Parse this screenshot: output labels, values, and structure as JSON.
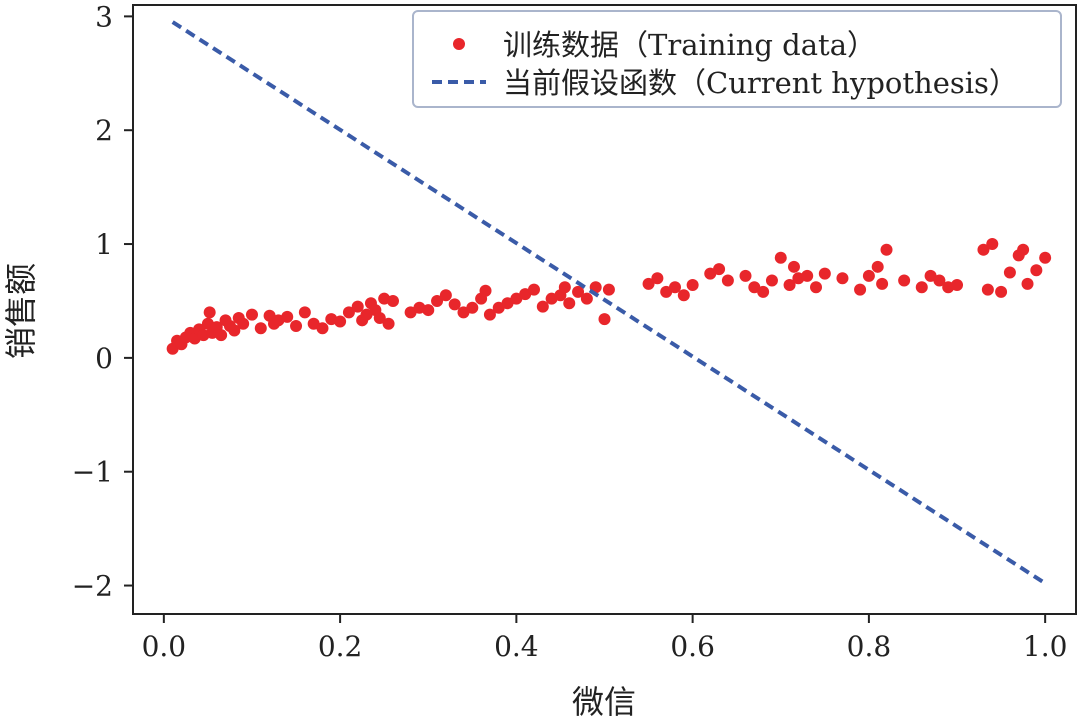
{
  "chart_data": {
    "type": "scatter",
    "title": "",
    "xlabel": "微信",
    "ylabel": "销售额",
    "xlim": [
      -0.035,
      1.035
    ],
    "ylim": [
      -2.25,
      3.1
    ],
    "xticks": [
      0.0,
      0.2,
      0.4,
      0.6,
      0.8,
      1.0
    ],
    "xtick_labels": [
      "0.0",
      "0.2",
      "0.4",
      "0.6",
      "0.8",
      "1.0"
    ],
    "yticks": [
      -2,
      -1,
      0,
      1,
      2,
      3
    ],
    "ytick_labels": [
      "−2",
      "−1",
      "0",
      "1",
      "2",
      "3"
    ],
    "grid": false,
    "legend_position": "top-right",
    "colors": {
      "points": "#e8262b",
      "line": "#3a5ba8",
      "legend_border": "#aab5cc"
    },
    "series": [
      {
        "name": "训练数据（Training data）",
        "kind": "scatter",
        "x": [
          0.01,
          0.015,
          0.02,
          0.025,
          0.03,
          0.035,
          0.04,
          0.045,
          0.05,
          0.052,
          0.055,
          0.06,
          0.065,
          0.07,
          0.075,
          0.08,
          0.085,
          0.09,
          0.1,
          0.11,
          0.12,
          0.125,
          0.13,
          0.14,
          0.15,
          0.16,
          0.17,
          0.18,
          0.19,
          0.2,
          0.21,
          0.22,
          0.225,
          0.23,
          0.235,
          0.24,
          0.245,
          0.25,
          0.255,
          0.26,
          0.28,
          0.29,
          0.3,
          0.31,
          0.32,
          0.33,
          0.34,
          0.35,
          0.36,
          0.365,
          0.37,
          0.38,
          0.39,
          0.4,
          0.41,
          0.42,
          0.43,
          0.44,
          0.45,
          0.455,
          0.46,
          0.47,
          0.48,
          0.49,
          0.5,
          0.505,
          0.55,
          0.56,
          0.57,
          0.58,
          0.59,
          0.6,
          0.62,
          0.63,
          0.64,
          0.66,
          0.67,
          0.68,
          0.69,
          0.7,
          0.71,
          0.715,
          0.72,
          0.73,
          0.74,
          0.75,
          0.77,
          0.79,
          0.8,
          0.81,
          0.815,
          0.82,
          0.84,
          0.86,
          0.87,
          0.88,
          0.89,
          0.9,
          0.93,
          0.935,
          0.94,
          0.95,
          0.96,
          0.97,
          0.975,
          0.98,
          0.99,
          1.0
        ],
        "y": [
          0.08,
          0.15,
          0.12,
          0.18,
          0.22,
          0.17,
          0.25,
          0.2,
          0.3,
          0.4,
          0.22,
          0.27,
          0.2,
          0.33,
          0.28,
          0.24,
          0.35,
          0.3,
          0.38,
          0.26,
          0.37,
          0.3,
          0.33,
          0.36,
          0.28,
          0.4,
          0.3,
          0.26,
          0.34,
          0.32,
          0.4,
          0.45,
          0.33,
          0.38,
          0.48,
          0.42,
          0.35,
          0.52,
          0.3,
          0.5,
          0.4,
          0.44,
          0.42,
          0.5,
          0.55,
          0.47,
          0.4,
          0.44,
          0.52,
          0.59,
          0.38,
          0.44,
          0.48,
          0.52,
          0.56,
          0.6,
          0.45,
          0.52,
          0.55,
          0.62,
          0.48,
          0.58,
          0.52,
          0.62,
          0.34,
          0.6,
          0.65,
          0.7,
          0.58,
          0.62,
          0.55,
          0.64,
          0.74,
          0.78,
          0.68,
          0.72,
          0.62,
          0.58,
          0.68,
          0.88,
          0.64,
          0.8,
          0.7,
          0.72,
          0.62,
          0.74,
          0.7,
          0.6,
          0.72,
          0.8,
          0.65,
          0.95,
          0.68,
          0.62,
          0.72,
          0.68,
          0.62,
          0.64,
          0.95,
          0.6,
          1.0,
          0.58,
          0.75,
          0.9,
          0.95,
          0.65,
          0.77,
          0.88
        ]
      },
      {
        "name": "当前假设函数（Current hypothesis）",
        "kind": "line",
        "style": "dashed",
        "x": [
          0.01,
          1.0
        ],
        "y": [
          2.95,
          -1.98
        ]
      }
    ]
  }
}
